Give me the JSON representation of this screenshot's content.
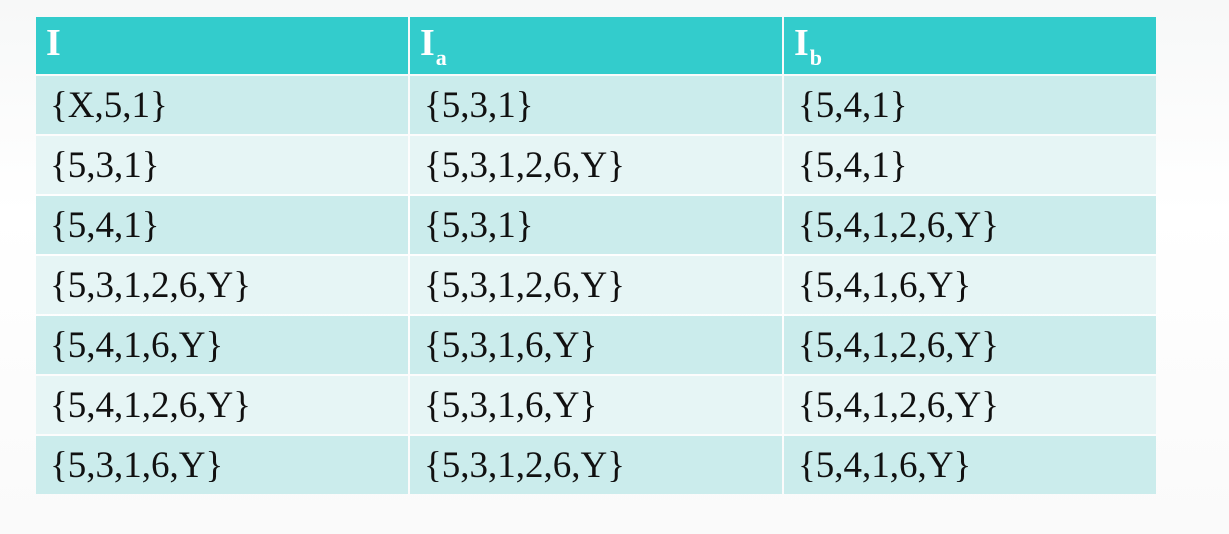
{
  "table": {
    "headers": [
      {
        "main": "I",
        "sub": ""
      },
      {
        "main": "I",
        "sub": "a"
      },
      {
        "main": "I",
        "sub": "b"
      }
    ],
    "rows": [
      [
        "{X,5,1}",
        "{5,3,1}",
        "{5,4,1}"
      ],
      [
        "{5,3,1}",
        "{5,3,1,2,6,Y}",
        "{5,4,1}"
      ],
      [
        "{5,4,1}",
        "{5,3,1}",
        "{5,4,1,2,6,Y}"
      ],
      [
        "{5,3,1,2,6,Y}",
        "{5,3,1,2,6,Y}",
        "{5,4,1,6,Y}"
      ],
      [
        "{5,4,1,6,Y}",
        "{5,3,1,6,Y}",
        "{5,4,1,2,6,Y}"
      ],
      [
        "{5,4,1,2,6,Y}",
        "{5,3,1,6,Y}",
        "{5,4,1,2,6,Y}"
      ],
      [
        "{5,3,1,6,Y}",
        "{5,3,1,2,6,Y}",
        "{5,4,1,6,Y}"
      ]
    ]
  },
  "colors": {
    "header_bg": "#33cccc",
    "row_odd_bg": "#cbecec",
    "row_even_bg": "#e6f5f5"
  }
}
